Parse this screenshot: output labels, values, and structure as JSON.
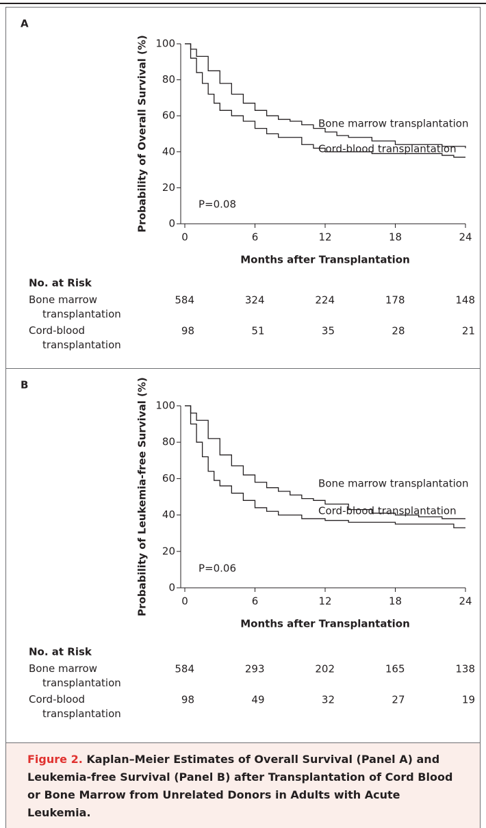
{
  "chart_data": [
    {
      "type": "line",
      "step": true,
      "panel": "A",
      "y_label": "Probability of Overall Survival (%)",
      "x_label": "Months after Transplantation",
      "annotation": "P=0.08",
      "xlim": [
        0,
        24
      ],
      "xticks": [
        0,
        6,
        12,
        18,
        24
      ],
      "ylim": [
        0,
        100
      ],
      "yticks": [
        0,
        20,
        40,
        60,
        80,
        100
      ],
      "series": [
        {
          "name": "Bone marrow transplantation",
          "color": "#231f20",
          "x": [
            0,
            0.5,
            1,
            2,
            3,
            4,
            5,
            6,
            7,
            8,
            9,
            10,
            11,
            12,
            13,
            14,
            16,
            18,
            20,
            22,
            24
          ],
          "values": [
            100,
            97,
            93,
            85,
            78,
            72,
            67,
            63,
            60,
            58,
            57,
            55,
            53,
            51,
            49,
            48,
            46,
            44,
            44,
            43,
            42
          ]
        },
        {
          "name": "Cord-blood transplantation",
          "color": "#231f20",
          "x": [
            0,
            0.5,
            1,
            1.5,
            2,
            2.5,
            3,
            4,
            5,
            6,
            7,
            8,
            10,
            11,
            12,
            14,
            16,
            18,
            22,
            23,
            24
          ],
          "values": [
            100,
            92,
            84,
            78,
            72,
            67,
            63,
            60,
            57,
            53,
            50,
            48,
            44,
            42,
            40,
            40,
            39,
            39,
            38,
            37,
            37
          ]
        }
      ],
      "risk_table": {
        "title": "No. at Risk",
        "rows": [
          {
            "label": "Bone marrow transplantation",
            "values": [
              584,
              324,
              224,
              178,
              148
            ]
          },
          {
            "label": "Cord-blood transplantation",
            "values": [
              98,
              51,
              35,
              28,
              21
            ]
          }
        ]
      }
    },
    {
      "type": "line",
      "step": true,
      "panel": "B",
      "y_label": "Probability of Leukemia-free Survival (%)",
      "x_label": "Months after Transplantation",
      "annotation": "P=0.06",
      "xlim": [
        0,
        24
      ],
      "xticks": [
        0,
        6,
        12,
        18,
        24
      ],
      "ylim": [
        0,
        100
      ],
      "yticks": [
        0,
        20,
        40,
        60,
        80,
        100
      ],
      "series": [
        {
          "name": "Bone marrow transplantation",
          "color": "#231f20",
          "x": [
            0,
            0.5,
            1,
            2,
            3,
            4,
            5,
            6,
            7,
            8,
            9,
            10,
            11,
            12,
            14,
            16,
            18,
            20,
            22,
            24
          ],
          "values": [
            100,
            96,
            92,
            82,
            73,
            67,
            62,
            58,
            55,
            53,
            51,
            49,
            48,
            46,
            43,
            41,
            40,
            39,
            38,
            38
          ]
        },
        {
          "name": "Cord-blood transplantation",
          "color": "#231f20",
          "x": [
            0,
            0.5,
            1,
            1.5,
            2,
            2.5,
            3,
            4,
            5,
            6,
            7,
            8,
            10,
            12,
            14,
            18,
            22,
            23,
            24
          ],
          "values": [
            100,
            90,
            80,
            72,
            64,
            59,
            56,
            52,
            48,
            44,
            42,
            40,
            38,
            37,
            36,
            35,
            35,
            33,
            33
          ]
        }
      ],
      "risk_table": {
        "title": "No. at Risk",
        "rows": [
          {
            "label": "Bone marrow transplantation",
            "values": [
              584,
              293,
              202,
              165,
              138
            ]
          },
          {
            "label": "Cord-blood transplantation",
            "values": [
              98,
              49,
              32,
              27,
              19
            ]
          }
        ]
      }
    }
  ],
  "caption": {
    "label": "Figure 2.",
    "text": "Kaplan–Meier Estimates of Overall Survival (Panel A) and Leukemia-free Survival (Panel B) after Transplantation of Cord Blood or Bone Marrow from Unrelated Donors in Adults with Acute Leukemia."
  }
}
